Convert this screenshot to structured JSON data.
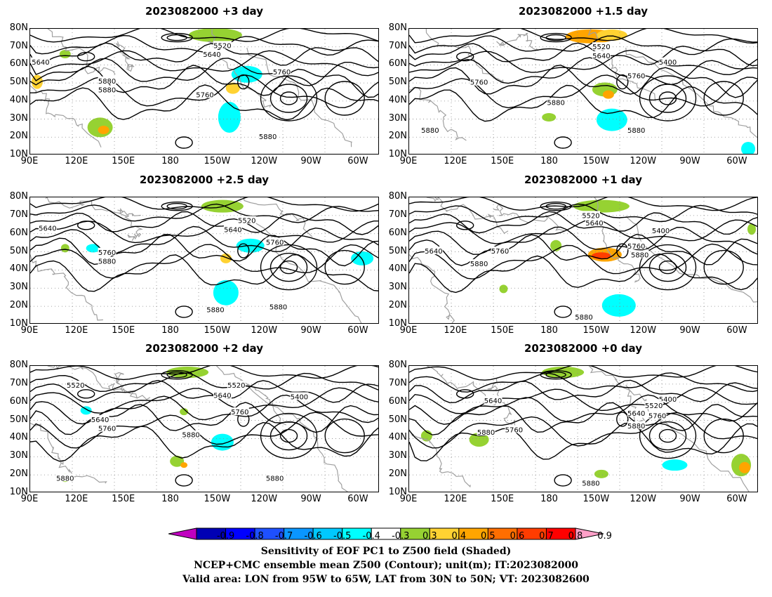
{
  "panels": [
    {
      "title": "2023082000  +3 day",
      "contour_labels": [
        "5640",
        "5520",
        "5640",
        "5760",
        "5880",
        "5760",
        "5880",
        "5880"
      ]
    },
    {
      "title": "2023082000  +1.5 day",
      "contour_labels": [
        "5520",
        "5640",
        "5400",
        "5760",
        "5760",
        "5880",
        "5880",
        "5880"
      ]
    },
    {
      "title": "2023082000  +2.5 day",
      "contour_labels": [
        "5640",
        "5520",
        "5640",
        "5760",
        "5760",
        "5880",
        "5880",
        "5880"
      ]
    },
    {
      "title": "2023082000  +1 day",
      "contour_labels": [
        "5520",
        "5640",
        "5400",
        "5640",
        "5760",
        "5760",
        "5880",
        "5880",
        "5880"
      ]
    },
    {
      "title": "2023082000  +2 day",
      "contour_labels": [
        "5520",
        "5520",
        "5640",
        "5400",
        "5760",
        "5640",
        "5760",
        "5880",
        "5880",
        "5880"
      ]
    },
    {
      "title": "2023082000  +0 day",
      "contour_labels": [
        "5640",
        "5400",
        "5520",
        "5640",
        "5760",
        "5760",
        "5880",
        "5880",
        "5880"
      ]
    }
  ],
  "axes": {
    "lat_labels": [
      "80N",
      "70N",
      "60N",
      "50N",
      "40N",
      "30N",
      "20N",
      "10N"
    ],
    "lon_labels": [
      "90E",
      "120E",
      "150E",
      "180",
      "150W",
      "120W",
      "90W",
      "60W"
    ]
  },
  "colorbar": {
    "ticks": [
      "-0.9",
      "-0.8",
      "-0.7",
      "-0.6",
      "-0.5",
      "-0.4",
      "-0.3",
      "0.3",
      "0.4",
      "0.5",
      "0.6",
      "0.7",
      "0.8",
      "0.9"
    ],
    "colors": [
      "#c000c0",
      "#0000b4",
      "#0000ff",
      "#1e50ff",
      "#0a96ff",
      "#00c8ff",
      "#00ffff",
      "#ffffff",
      "#96d232",
      "#ffd232",
      "#ffa500",
      "#ff6e00",
      "#ff3c00",
      "#ff0000",
      "#ffa0c8"
    ]
  },
  "caption": {
    "line1": "Sensitivity of EOF PC1 to Z500 field (Shaded)",
    "line2": "NCEP+CMC ensemble mean Z500 (Contour); unit(m); IT:2023082000",
    "line3": "Valid area: LON from 95W to 65W, LAT from 30N to 50N; VT: 2023082600"
  },
  "map_style": {
    "coast_color": "#a0a0a0",
    "contour_color": "#000000",
    "grid_color": "#888888"
  }
}
